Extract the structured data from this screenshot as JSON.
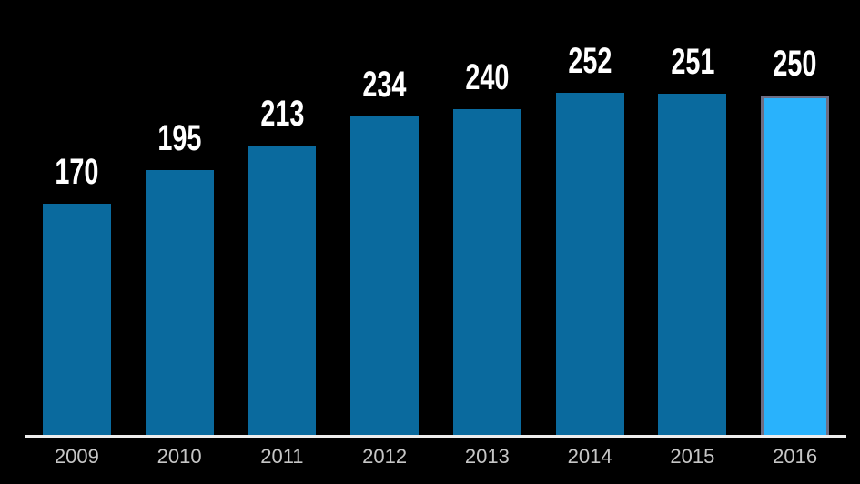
{
  "chart_data": {
    "type": "bar",
    "categories": [
      "2009",
      "2010",
      "2011",
      "2012",
      "2013",
      "2014",
      "2015",
      "2016"
    ],
    "values": [
      170,
      195,
      213,
      234,
      240,
      252,
      251,
      250
    ],
    "data_labels": [
      "170",
      "195",
      "213",
      "234",
      "240",
      "252",
      "251",
      "250"
    ],
    "title": "",
    "xlabel": "",
    "ylabel": "",
    "ylim": [
      0,
      320
    ],
    "grid": false,
    "legend": false,
    "highlight_index": 7,
    "colors": {
      "bar": "#0a6a9e",
      "highlight_bar": "#29b2fc",
      "highlight_border": "#6e6e85",
      "axis_line": "#ededed",
      "value_label": "#ffffff",
      "tick_label": "#c6c6c6",
      "background": "#000000"
    }
  }
}
